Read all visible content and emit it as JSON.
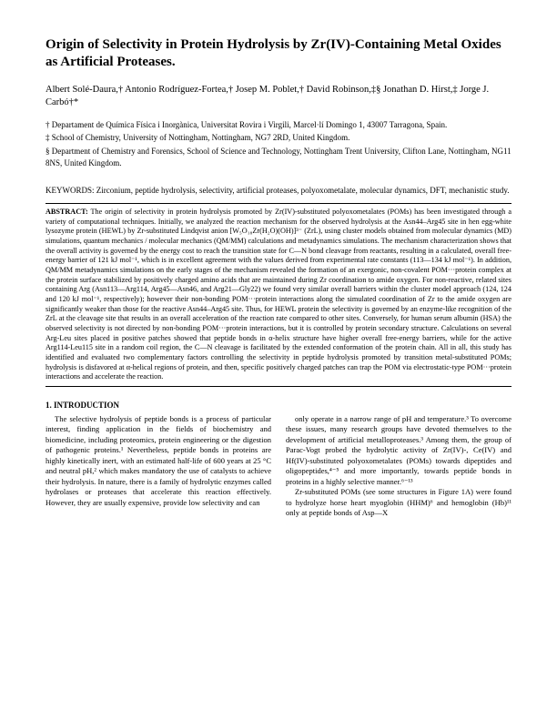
{
  "title": "Origin of Selectivity in Protein Hydrolysis by Zr(IV)-Containing Metal Oxides as Artificial Proteases.",
  "authors": "Albert Solé-Daura,† Antonio Rodríguez-Fortea,† Josep M. Poblet,† David Robinson,‡§ Jonathan D. Hirst,‡ Jorge J. Carbó†*",
  "affiliations": {
    "a1": "† Departament de Química Física i Inorgànica, Universitat Rovira i Virgili, Marcel·lí Domingo 1, 43007 Tarragona, Spain.",
    "a2": "‡ School of Chemistry, University of Nottingham, Nottingham, NG7 2RD, United Kingdom.",
    "a3": "§ Department of Chemistry and Forensics, School of Science and Technology, Nottingham Trent University, Clifton Lane, Nottingham, NG11 8NS, United Kingdom."
  },
  "keywords": "KEYWORDS: Zirconium, peptide hydrolysis, selectivity, artificial proteases, polyoxometalate, molecular dynamics, DFT, mechanistic study.",
  "abstract_label": "ABSTRACT:",
  "abstract": " The origin of selectivity in protein hydrolysis promoted by Zr(IV)-substituted polyoxometalates (POMs) has been investigated through a variety of computational techniques. Initially, we analyzed the reaction mechanism for the observed hydrolysis at the Asn44–Arg45 site in hen egg-white lysozyme protein (HEWL) by Zr-substituted Lindqvist anion [W₅O₁₈Zr(H₂O)(OH)]³⁻ (ZrL), using cluster models obtained from molecular dynamics (MD) simulations, quantum mechanics / molecular mechanics (QM/MM) calculations and metadynamics simulations. The mechanism characterization shows that the overall activity is governed by the energy cost to reach the transition state for C—N bond cleavage from reactants, resulting in a calculated, overall free-energy barrier of 121 kJ mol⁻¹, which is in excellent agreement with the values derived from experimental rate constants (113—134 kJ mol⁻¹). In addition, QM/MM metadynamics simulations on the early stages of the mechanism revealed the formation of an exergonic, non-covalent POM···protein complex at the protein surface stabilized by positively charged amino acids that are maintained during Zr coordination to amide oxygen. For non-reactive, related sites containing Arg (Asn113—Arg114, Arg45—Asn46, and Arg21—Gly22) we found very similar overall barriers within the cluster model approach (124, 124 and 120 kJ mol⁻¹, respectively); however their non-bonding POM···protein interactions along the simulated coordination of Zr to the amide oxygen are significantly weaker than those for the reactive Asn44–Arg45 site. Thus, for HEWL protein the selectivity is governed by an enzyme-like recognition of the ZrL at the cleavage site that results in an overall acceleration of the reaction rate compared to other sites. Conversely, for human serum albumin (HSA) the observed selectivity is not directed by non-bonding POM···protein interactions, but it is controlled by protein secondary structure. Calculations on several Arg-Leu sites placed in positive patches showed that peptide bonds in α-helix structure have higher overall free-energy barriers, while for the active Arg114-Leu115 site in a random coil region, the C—N cleavage is facilitated by the extended conformation of the protein chain. All in all, this study has identified and evaluated two complementary factors controlling the selectivity in peptide hydrolysis promoted by transition metal-substituted POMs; hydrolysis is disfavored at α-helical regions of protein, and then, specific positively charged patches can trap the POM via electrostatic-type POM···protein interactions and accelerate the reaction.",
  "section_head": "1. INTRODUCTION",
  "intro": {
    "left": "The selective hydrolysis of peptide bonds is a process of particular interest, finding application in the fields of biochemistry and biomedicine, including proteomics, protein engineering or the digestion of pathogenic proteins.¹ Nevertheless, peptide bonds in proteins are highly kinetically inert, with an estimated half-life of 600 years at 25 °C and neutral pH,² which makes mandatory the use of catalysts to achieve their hydrolysis. In nature, there is a family of hydrolytic enzymes called hydrolases or proteases that accelerate this reaction effectively. However, they are usually expensive, provide low selectivity and can",
    "right_p1": "only operate in a narrow range of pH and temperature.³ To overcome these issues, many research groups have devoted themselves to the development of artificial metalloproteases.³ Among them, the group of Parac-Vogt probed the hydrolytic activity of Zr(IV)-, Ce(IV) and Hf(IV)-substituted polyoxometalates (POMs) towards dipeptides and oligopeptides,⁴⁻⁵ and more importantly, towards peptide bonds in proteins in a highly selective manner.⁶⁻¹³",
    "right_p2": "Zr-substituted POMs (see some structures in Figure 1A) were found to hydrolyze horse heart myoglobin (HHM)⁶ and hemoglobin (Hb)¹¹ only at peptide bonds of Asp—X"
  }
}
